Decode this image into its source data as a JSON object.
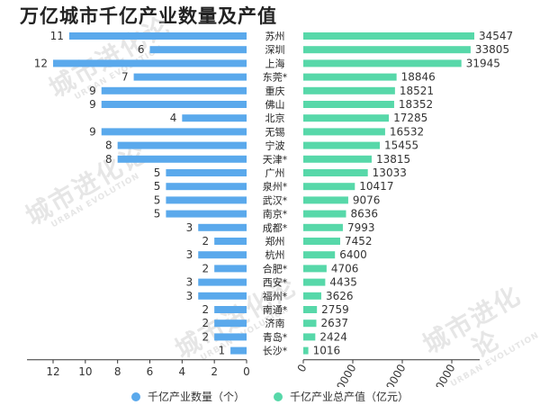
{
  "title": "万亿城市千亿产业数量及产值",
  "watermark": {
    "main": "城市进化论",
    "sub": "URBAN EVOLUTION"
  },
  "colors": {
    "count": "#5aa9ec",
    "value": "#57d8a9",
    "axis": "#333333"
  },
  "chart_data": {
    "type": "bar",
    "categories": [
      "苏州",
      "深圳",
      "上海",
      "东莞*",
      "重庆",
      "佛山",
      "北京",
      "无锡",
      "宁波",
      "天津*",
      "广州",
      "泉州*",
      "武汉*",
      "南京*",
      "成都*",
      "郑州",
      "杭州",
      "合肥*",
      "西安*",
      "福州*",
      "南通*",
      "济南",
      "青岛*",
      "长沙*"
    ],
    "series": [
      {
        "name": "千亿产业数量（个）",
        "values": [
          11,
          6,
          12,
          7,
          9,
          9,
          4,
          9,
          8,
          8,
          5,
          5,
          5,
          5,
          3,
          2,
          3,
          2,
          3,
          3,
          2,
          2,
          2,
          1
        ],
        "xlim": [
          0,
          12
        ],
        "ticks": [
          0,
          2,
          4,
          6,
          8,
          10,
          12
        ],
        "direction": "left"
      },
      {
        "name": "千亿产业总产值（亿元）",
        "values": [
          34547,
          33805,
          31945,
          18846,
          18521,
          18352,
          17285,
          16532,
          15455,
          13815,
          13033,
          10417,
          9076,
          8636,
          7993,
          7452,
          6400,
          4706,
          4435,
          3626,
          2759,
          2637,
          2424,
          1016
        ],
        "xlim": [
          0,
          34547
        ],
        "ticks": [
          0,
          10000,
          20000,
          30000
        ],
        "direction": "right"
      }
    ]
  }
}
